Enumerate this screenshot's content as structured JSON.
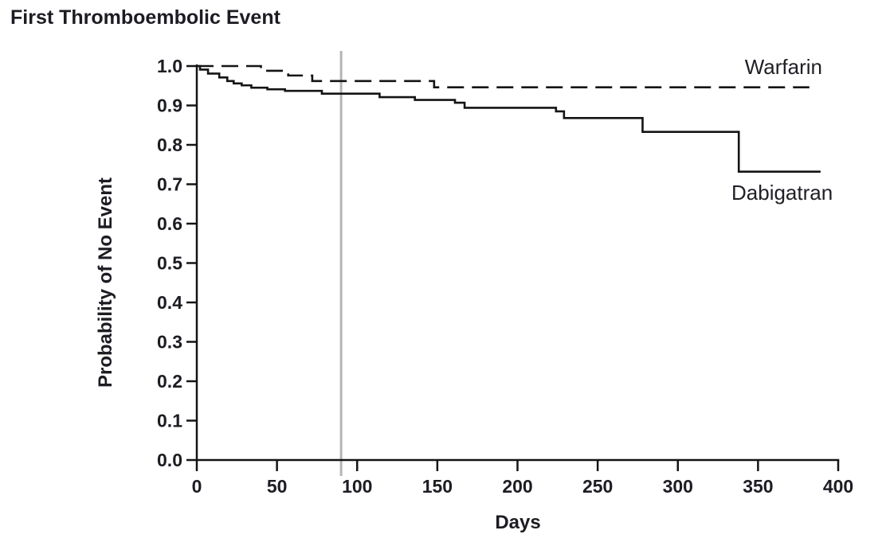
{
  "title": "First Thromboembolic Event",
  "chart_data": {
    "type": "line",
    "subtype": "kaplan-meier-step",
    "title": "First Thromboembolic Event",
    "xlabel": "Days",
    "ylabel": "Probability of No Event",
    "xlim": [
      0,
      400
    ],
    "ylim": [
      0.0,
      1.0
    ],
    "x_ticks": [
      0,
      50,
      100,
      150,
      200,
      250,
      300,
      350,
      400
    ],
    "y_ticks": [
      "1.0",
      "0.9",
      "0.8",
      "0.7",
      "0.6",
      "0.5",
      "0.4",
      "0.3",
      "0.2",
      "0.1",
      "0.0"
    ],
    "grid": false,
    "legend_position": "curve-end-right",
    "reference_line": {
      "x": 90,
      "color": "#b5b5b5"
    },
    "line_color": "#141414",
    "series": [
      {
        "name": "Warfarin",
        "style": "dashed",
        "end_x": 382,
        "steps": [
          [
            0,
            1.0
          ],
          [
            40,
            0.988
          ],
          [
            57,
            0.976
          ],
          [
            72,
            0.962
          ],
          [
            148,
            0.946
          ]
        ]
      },
      {
        "name": "Dabigatran",
        "style": "solid",
        "end_x": 389,
        "steps": [
          [
            0,
            1.0
          ],
          [
            2,
            0.991
          ],
          [
            7,
            0.981
          ],
          [
            14,
            0.971
          ],
          [
            19,
            0.962
          ],
          [
            23,
            0.956
          ],
          [
            28,
            0.951
          ],
          [
            34,
            0.945
          ],
          [
            44,
            0.941
          ],
          [
            55,
            0.937
          ],
          [
            78,
            0.93
          ],
          [
            114,
            0.921
          ],
          [
            136,
            0.914
          ],
          [
            161,
            0.907
          ],
          [
            167,
            0.894
          ],
          [
            224,
            0.885
          ],
          [
            229,
            0.868
          ],
          [
            278,
            0.833
          ],
          [
            338,
            0.732
          ]
        ]
      }
    ]
  }
}
